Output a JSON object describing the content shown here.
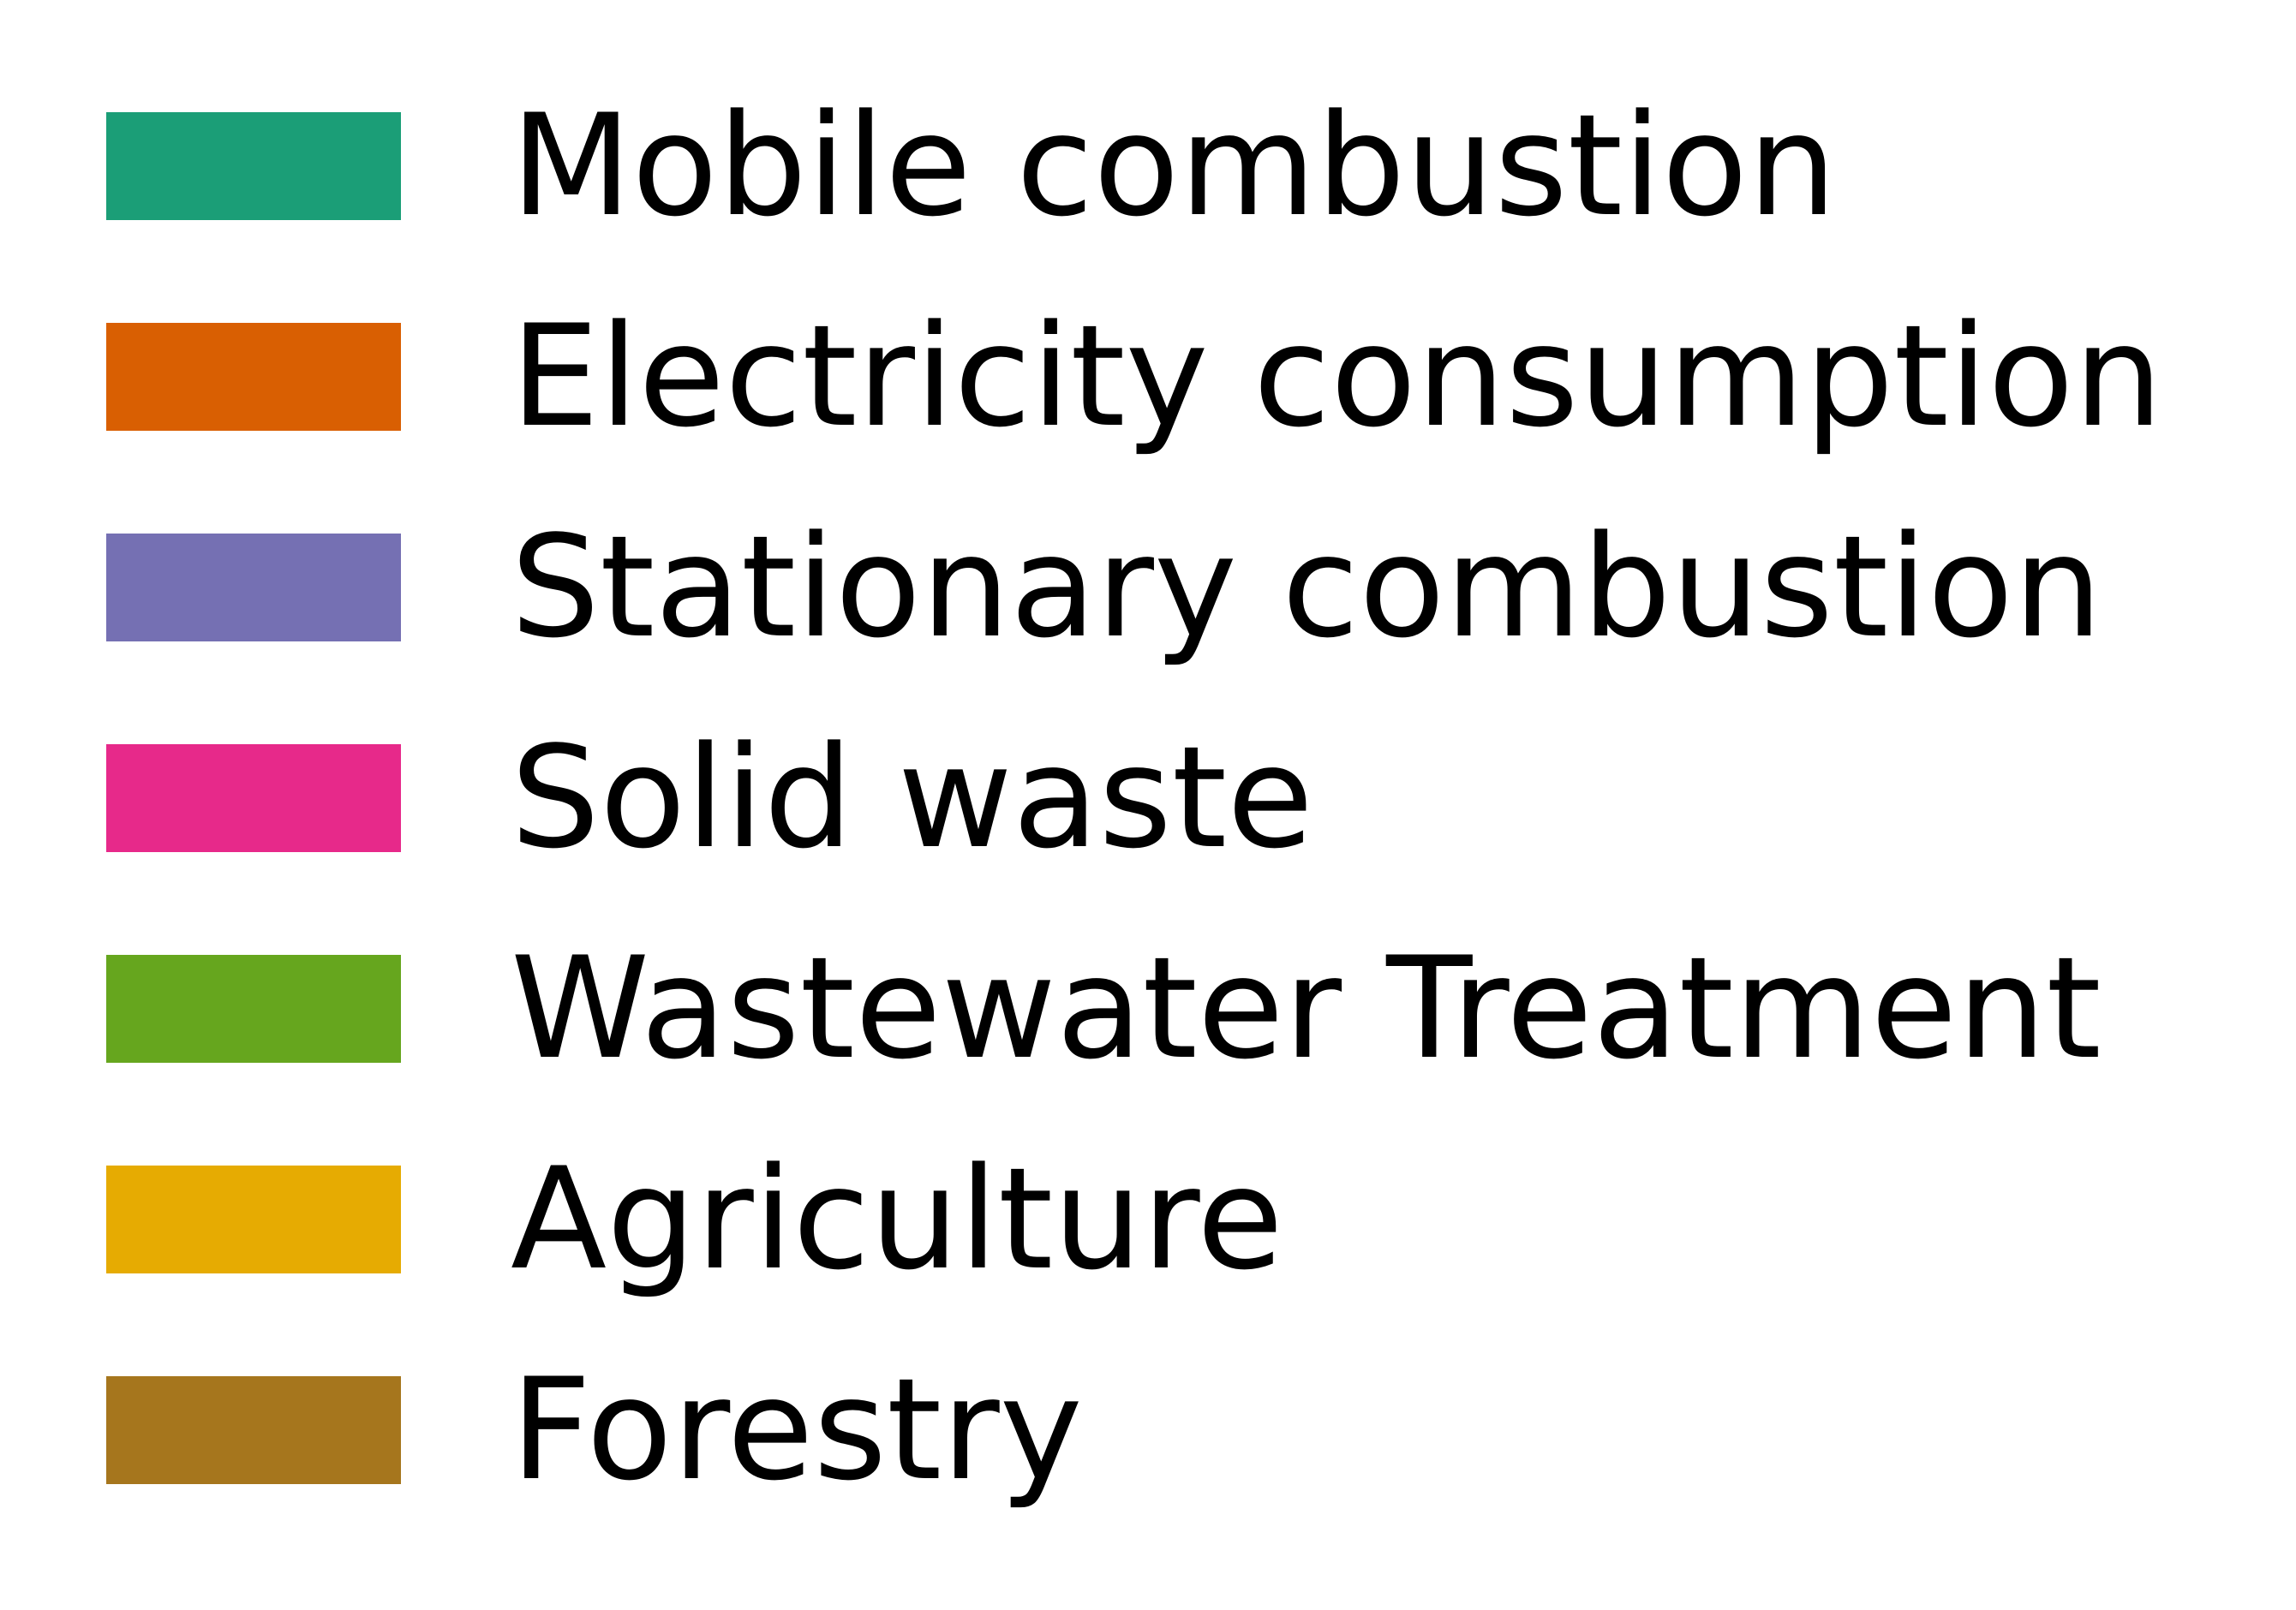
{
  "chart_data": {
    "type": "bar",
    "legend": [
      {
        "name": "Mobile combustion",
        "color": "#1b9e77"
      },
      {
        "name": "Electricity consumption",
        "color": "#d95f02"
      },
      {
        "name": "Stationary combustion",
        "color": "#7570b3"
      },
      {
        "name": "Solid waste",
        "color": "#e7298a"
      },
      {
        "name": "Wastewater Treatment",
        "color": "#66a61e"
      },
      {
        "name": "Agriculture",
        "color": "#e6ab02"
      },
      {
        "name": "Forestry",
        "color": "#a6761d"
      }
    ]
  }
}
